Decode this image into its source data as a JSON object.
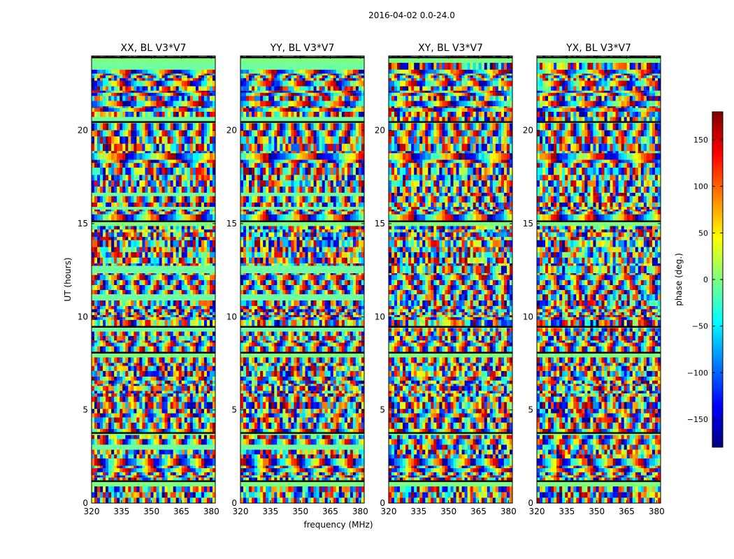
{
  "chart_data": {
    "type": "heatmap",
    "suptitle": "2016-04-02 0.0-24.0",
    "xlabel": "frequency (MHz)",
    "ylabel": "UT (hours)",
    "xlim": [
      320,
      382
    ],
    "ylim": [
      0,
      24
    ],
    "xticks": [
      320,
      335,
      350,
      365,
      380
    ],
    "yticks": [
      0,
      5,
      10,
      15,
      20
    ],
    "panels": [
      {
        "title": "XX, BL V3*V7"
      },
      {
        "title": "YY, BL V3*V7"
      },
      {
        "title": "XY, BL V3*V7"
      },
      {
        "title": "YX, BL V3*V7"
      }
    ],
    "colorbar": {
      "label": "phase (deg.)",
      "range": [
        -180,
        180
      ],
      "ticks": [
        150,
        100,
        50,
        0,
        -50,
        -100,
        -150
      ],
      "tick_labels": [
        "150",
        "100",
        "50",
        "0",
        "−50",
        "−100",
        "−150"
      ],
      "colormap": "jet",
      "stops": [
        "#00007f",
        "#0000ff",
        "#007fff",
        "#00ffff",
        "#7fff7f",
        "#ffff00",
        "#ff7f00",
        "#ff0000",
        "#7f0000"
      ]
    }
  }
}
